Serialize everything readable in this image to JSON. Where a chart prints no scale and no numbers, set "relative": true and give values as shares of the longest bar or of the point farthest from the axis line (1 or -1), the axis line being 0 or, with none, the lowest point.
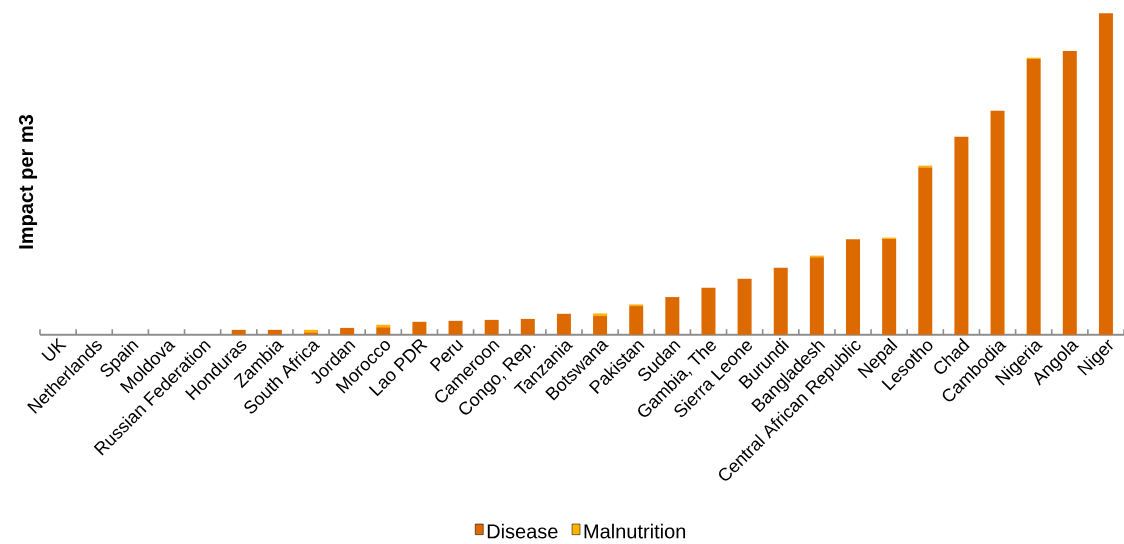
{
  "chart_data": {
    "type": "bar",
    "stacked": true,
    "relative": true,
    "ylabel": "Impact per m3",
    "legend": "bottom",
    "categories": [
      "UK",
      "Netherlands",
      "Spain",
      "Moldova",
      "Russian Federation",
      "Honduras",
      "Zambia",
      "South Africa",
      "Jordan",
      "Morocco",
      "Lao PDR",
      "Peru",
      "Cameroon",
      "Congo, Rep.",
      "Tanzania",
      "Botswana",
      "Pakistan",
      "Sudan",
      "Gambia, The",
      "Sierra Leone",
      "Burundi",
      "Bangladesh",
      "Central African Republic",
      "Nepal",
      "Lesotho",
      "Chad",
      "Cambodia",
      "Nigeria",
      "Angola",
      "Niger"
    ],
    "series": [
      {
        "name": "Disease",
        "color": "#dd6a00",
        "values": [
          0,
          0,
          0,
          0,
          0,
          0.015,
          0.015,
          0.007,
          0.021,
          0.023,
          0.04,
          0.043,
          0.046,
          0.049,
          0.065,
          0.058,
          0.089,
          0.117,
          0.146,
          0.174,
          0.208,
          0.241,
          0.297,
          0.298,
          0.52,
          0.616,
          0.697,
          0.858,
          0.883,
          1
        ]
      },
      {
        "name": "Malnutrition",
        "color": "#ffb300",
        "values": [
          0,
          0,
          0,
          0,
          0,
          0,
          0,
          0.008,
          0,
          0.008,
          0,
          0,
          0,
          0,
          0,
          0.008,
          0.005,
          0,
          0,
          0,
          0,
          0.005,
          0,
          0.004,
          0.006,
          0,
          0,
          0.004,
          0,
          0
        ]
      }
    ]
  }
}
